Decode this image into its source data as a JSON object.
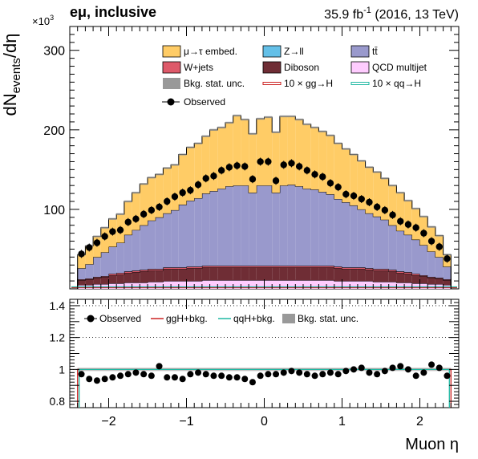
{
  "header": {
    "channel": "eμ, inclusive",
    "lumi_prefix": "35.9 fb",
    "lumi_exp": "-1",
    "lumi_suffix": " (2016, 13 TeV)"
  },
  "top_panel": {
    "ylabel_main": "dN",
    "ylabel_sub": "events",
    "ylabel_tail": "/dη",
    "multiplier_base": "×10",
    "multiplier_exp": "3",
    "yticks": [
      100,
      200,
      300
    ],
    "yrange": [
      0,
      330
    ],
    "legend": [
      {
        "label": "μ→τ embed.",
        "color": "#ffcc66"
      },
      {
        "label": "Z→ll",
        "color": "#64c0e8"
      },
      {
        "label": "tt̄",
        "color": "#9999cc"
      },
      {
        "label": "W+jets",
        "color": "#de5a6a"
      },
      {
        "label": "Diboson",
        "color": "#6f2d35"
      },
      {
        "label": "QCD multijet",
        "color": "#ffccff"
      },
      {
        "label": "Bkg. stat. unc.",
        "color": "#999999"
      },
      {
        "label": "10 × gg→H",
        "color": "#cc2222"
      },
      {
        "label": "10 × qq→H",
        "color": "#1fb8a3"
      },
      {
        "label": "Observed",
        "color": "#000000"
      }
    ]
  },
  "ratio_panel": {
    "yticks": [
      0.8,
      1,
      1.2,
      1.4
    ],
    "ytick_labels": [
      "0.8",
      "1",
      "1.2",
      "1.4"
    ],
    "yrange": [
      0.76,
      1.44
    ],
    "legend": [
      {
        "label": "Observed",
        "color": "#000000"
      },
      {
        "label": "ggH+bkg.",
        "color": "#cc2222"
      },
      {
        "label": "qqH+bkg.",
        "color": "#1fb8a3"
      },
      {
        "label": "Bkg. stat. unc.",
        "color": "#999999"
      }
    ]
  },
  "xaxis": {
    "label": "Muon η",
    "range": [
      -2.5,
      2.5
    ],
    "ticks": [
      -2,
      -1,
      0,
      1,
      2
    ],
    "tick_labels": [
      "−2",
      "−1",
      "0",
      "1",
      "2"
    ]
  },
  "chart_data": {
    "type": "bar",
    "stacked": true,
    "x_edges_range": [
      -2.4,
      2.4
    ],
    "n_bins": 48,
    "bin_width": 0.1,
    "series": [
      {
        "name": "QCD multijet",
        "values": [
          5,
          5,
          6,
          6,
          7,
          7,
          8,
          8,
          8,
          9,
          9,
          10,
          10,
          10,
          10,
          10,
          11,
          11,
          11,
          11,
          11,
          11,
          11,
          11,
          11,
          11,
          11,
          11,
          11,
          11,
          11,
          11,
          11,
          10,
          10,
          10,
          10,
          10,
          9,
          9,
          9,
          8,
          8,
          7,
          7,
          6,
          6,
          5
        ]
      },
      {
        "name": "Diboson",
        "values": [
          6,
          7,
          8,
          9,
          10,
          11,
          12,
          13,
          14,
          14,
          14,
          15,
          15,
          15,
          16,
          16,
          16,
          16,
          16,
          16,
          16,
          16,
          16,
          16,
          16,
          16,
          16,
          16,
          16,
          16,
          16,
          16,
          16,
          16,
          15,
          15,
          15,
          14,
          14,
          14,
          13,
          12,
          11,
          10,
          9,
          8,
          7,
          6
        ]
      },
      {
        "name": "W+jets",
        "values": [
          1,
          1,
          1,
          1,
          2,
          2,
          2,
          2,
          2,
          2,
          2,
          2,
          2,
          2,
          2,
          2,
          2,
          2,
          2,
          2,
          2,
          2,
          2,
          2,
          2,
          2,
          2,
          2,
          2,
          2,
          2,
          2,
          2,
          2,
          2,
          2,
          2,
          2,
          2,
          2,
          2,
          2,
          2,
          2,
          1,
          1,
          1,
          1
        ]
      },
      {
        "name": "Z→ll",
        "values": [
          0,
          0,
          0,
          0,
          0,
          0,
          0,
          0,
          0,
          0,
          0,
          0,
          0,
          0,
          0,
          0,
          0,
          0,
          0,
          0,
          0,
          0,
          0,
          0,
          0,
          0,
          0,
          0,
          0,
          0,
          0,
          0,
          0,
          0,
          0,
          0,
          0,
          0,
          0,
          0,
          0,
          0,
          0,
          0,
          0,
          0,
          0,
          0
        ]
      },
      {
        "name": "tt̄",
        "values": [
          14,
          18,
          25,
          30,
          34,
          38,
          46,
          51,
          56,
          61,
          65,
          68,
          72,
          79,
          83,
          86,
          91,
          94,
          97,
          100,
          101,
          101,
          92,
          101,
          101,
          92,
          101,
          102,
          100,
          97,
          96,
          93,
          90,
          85,
          82,
          78,
          73,
          69,
          66,
          62,
          56,
          51,
          47,
          43,
          38,
          32,
          26,
          16
        ]
      },
      {
        "name": "μ→τ embed.",
        "values": [
          17,
          23,
          26,
          31,
          35,
          36,
          42,
          47,
          52,
          54,
          54,
          57,
          57,
          63,
          67,
          69,
          72,
          77,
          77,
          80,
          88,
          83,
          74,
          84,
          86,
          76,
          87,
          86,
          84,
          81,
          78,
          76,
          74,
          70,
          67,
          64,
          61,
          58,
          56,
          52,
          50,
          48,
          43,
          39,
          36,
          31,
          27,
          15
        ]
      }
    ],
    "observed": [
      44,
      52,
      58,
      66,
      72,
      74,
      84,
      88,
      94,
      99,
      103,
      110,
      116,
      121,
      124,
      131,
      139,
      142,
      149,
      153,
      155,
      154,
      138,
      160,
      160,
      136,
      156,
      158,
      154,
      149,
      144,
      141,
      133,
      128,
      119,
      117,
      113,
      109,
      103,
      99,
      93,
      85,
      81,
      77,
      70,
      60,
      53,
      38
    ],
    "ratio": {
      "x_range": [
        -2.4,
        2.4
      ],
      "observed": [
        0.97,
        0.94,
        0.93,
        0.94,
        0.95,
        0.96,
        0.97,
        0.98,
        0.97,
        0.96,
        1.02,
        0.95,
        0.95,
        0.94,
        0.97,
        0.98,
        0.97,
        0.96,
        0.96,
        0.95,
        0.95,
        0.94,
        0.92,
        0.96,
        0.97,
        0.97,
        0.98,
        0.99,
        0.98,
        0.97,
        0.96,
        0.97,
        0.98,
        0.97,
        0.99,
        1.0,
        1.01,
        0.98,
        0.97,
        0.99,
        1.01,
        1.02,
        1.0,
        0.96,
        0.98,
        1.03,
        1.01,
        0.96
      ],
      "ggh_line": 1.0,
      "qqh_line": 1.0
    }
  }
}
